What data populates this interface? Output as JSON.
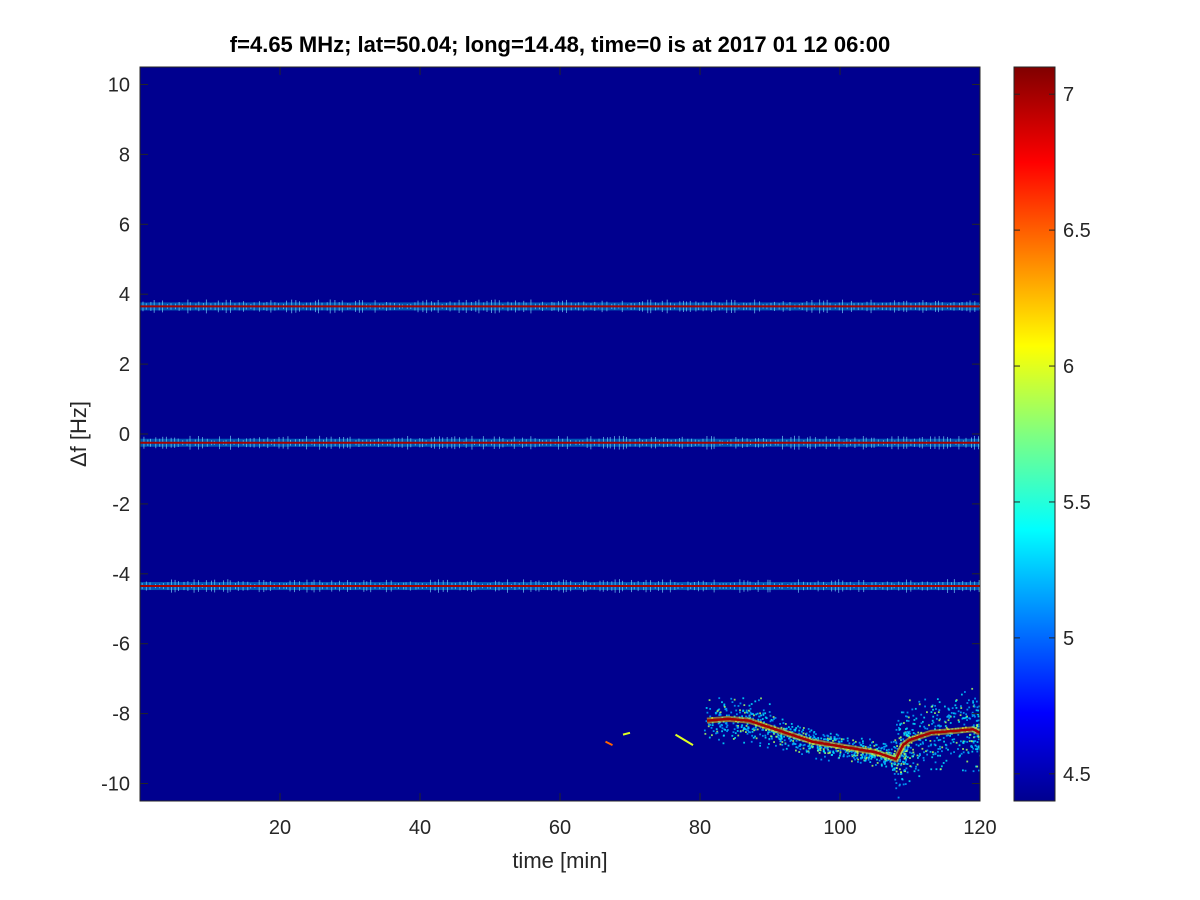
{
  "chart_data": {
    "type": "heatmap",
    "title": "f=4.65 MHz;  lat=50.04; long=14.48, time=0 is at 2017 01 12 06:00",
    "xlabel": "time [min]",
    "ylabel": "Δf [Hz]",
    "xlim": [
      0,
      120
    ],
    "ylim": [
      -10.5,
      10.5
    ],
    "xticks": [
      20,
      40,
      60,
      80,
      100,
      120
    ],
    "yticks": [
      -10,
      -8,
      -6,
      -4,
      -2,
      0,
      2,
      4,
      6,
      8,
      10
    ],
    "colorbar": {
      "colormap": "jet",
      "clim": [
        4.4,
        7.1
      ],
      "ticks": [
        4.5,
        5,
        5.5,
        6,
        6.5,
        7
      ]
    },
    "background_value": 4.4,
    "series": [
      {
        "name": "",
        "shape": "constant",
        "x": [
          0,
          120
        ],
        "y": [
          3.65,
          3.65
        ],
        "value": 7.0
      },
      {
        "name": "",
        "shape": "constant",
        "x": [
          0,
          120
        ],
        "y": [
          -0.25,
          -0.25
        ],
        "value": 7.0
      },
      {
        "name": "",
        "shape": "constant",
        "x": [
          0,
          120
        ],
        "y": [
          -4.35,
          -4.35
        ],
        "value": 7.0
      },
      {
        "name": "",
        "shape": "track",
        "x": [
          81,
          84,
          87,
          90,
          93,
          96,
          99,
          102,
          105,
          108,
          109,
          110,
          113,
          116,
          119,
          120
        ],
        "y": [
          -8.2,
          -8.15,
          -8.2,
          -8.4,
          -8.6,
          -8.8,
          -8.9,
          -9.0,
          -9.1,
          -9.3,
          -8.9,
          -8.75,
          -8.55,
          -8.5,
          -8.45,
          -8.55
        ],
        "value": 7.0
      },
      {
        "name": "",
        "shape": "fragment",
        "x": [
          66.5,
          67.5
        ],
        "y": [
          -8.8,
          -8.9
        ],
        "value": 6.5
      },
      {
        "name": "",
        "shape": "fragment",
        "x": [
          69,
          70
        ],
        "y": [
          -8.6,
          -8.55
        ],
        "value": 6.0
      },
      {
        "name": "",
        "shape": "fragment",
        "x": [
          76.5,
          79
        ],
        "y": [
          -8.6,
          -8.9
        ],
        "value": 6.0
      }
    ]
  }
}
